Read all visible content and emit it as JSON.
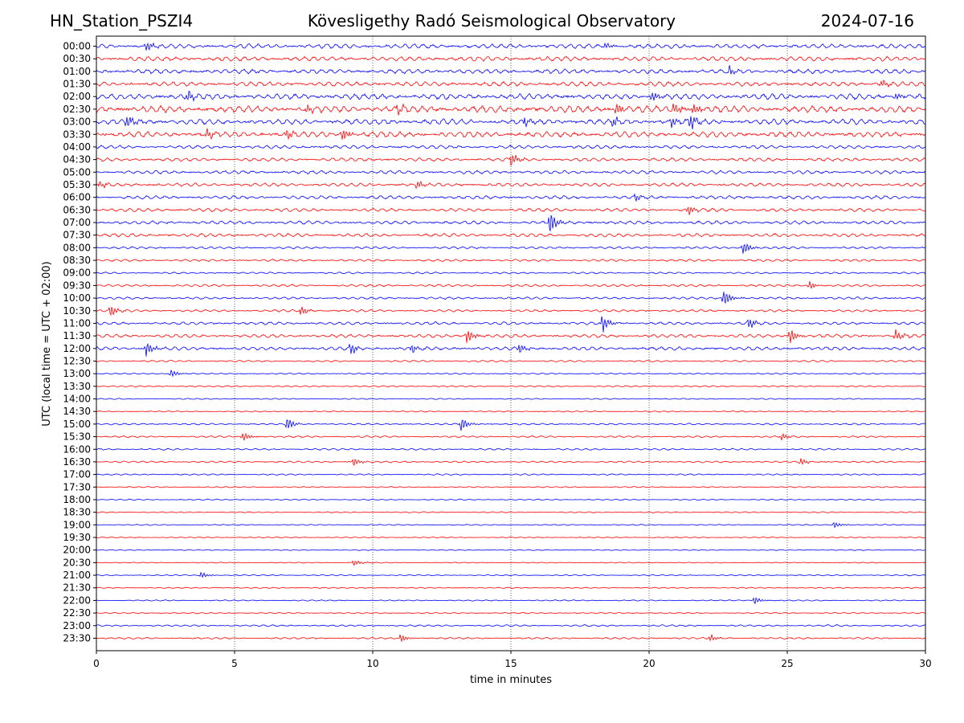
{
  "header": {
    "station": "HN_Station_PSZI4",
    "observatory": "Kövesligethy Radó Seismological Observatory",
    "date": "2024-07-16"
  },
  "chart_data": {
    "type": "line",
    "xlabel": "time in minutes",
    "ylabel": "UTC (local time = UTC + 02:00)",
    "xlim": [
      0,
      30
    ],
    "xticks": [
      0,
      5,
      10,
      15,
      20,
      25,
      30
    ],
    "grid": "vertical dotted lines at 5, 10, 15, 20, 25",
    "trace_colors": [
      "#0000ff",
      "#ff0000"
    ],
    "rows": [
      "00:00",
      "00:30",
      "01:00",
      "01:30",
      "02:00",
      "02:30",
      "03:00",
      "03:30",
      "04:00",
      "04:30",
      "05:00",
      "05:30",
      "06:00",
      "06:30",
      "07:00",
      "07:30",
      "08:00",
      "08:30",
      "09:00",
      "09:30",
      "10:00",
      "10:30",
      "11:00",
      "11:30",
      "12:00",
      "12:30",
      "13:00",
      "13:30",
      "14:00",
      "14:30",
      "15:00",
      "15:30",
      "16:00",
      "16:30",
      "17:00",
      "17:30",
      "18:00",
      "18:30",
      "19:00",
      "19:30",
      "20:00",
      "20:30",
      "21:00",
      "21:30",
      "22:00",
      "22:30",
      "23:00",
      "23:30"
    ],
    "noise_level": [
      4,
      4,
      4,
      4,
      5,
      6,
      5,
      5,
      3,
      3,
      3,
      3,
      3,
      3,
      3,
      3,
      2,
      2,
      1.5,
      2,
      2,
      2,
      2.5,
      3,
      3,
      1.5,
      1.2,
      1.2,
      1,
      1,
      1.5,
      1.5,
      1.5,
      1.5,
      1.2,
      1,
      1,
      1,
      1,
      0.8,
      0.8,
      0.8,
      1,
      1,
      1,
      1,
      1.5,
      1.5
    ],
    "events": [
      {
        "row": "00:00",
        "t": 1.8,
        "amp": 7
      },
      {
        "row": "00:00",
        "t": 18.4,
        "amp": 6
      },
      {
        "row": "01:00",
        "t": 22.9,
        "amp": 7
      },
      {
        "row": "01:30",
        "t": 28.4,
        "amp": 6
      },
      {
        "row": "02:00",
        "t": 3.3,
        "amp": 9
      },
      {
        "row": "02:00",
        "t": 20.1,
        "amp": 8
      },
      {
        "row": "02:00",
        "t": 28.9,
        "amp": 7
      },
      {
        "row": "02:30",
        "t": 7.6,
        "amp": 7
      },
      {
        "row": "02:30",
        "t": 10.9,
        "amp": 8
      },
      {
        "row": "02:30",
        "t": 18.8,
        "amp": 9
      },
      {
        "row": "02:30",
        "t": 20.9,
        "amp": 9
      },
      {
        "row": "02:30",
        "t": 21.6,
        "amp": 9
      },
      {
        "row": "03:00",
        "t": 1.1,
        "amp": 9
      },
      {
        "row": "03:00",
        "t": 15.5,
        "amp": 7
      },
      {
        "row": "03:00",
        "t": 18.7,
        "amp": 8
      },
      {
        "row": "03:00",
        "t": 20.8,
        "amp": 8
      },
      {
        "row": "03:00",
        "t": 21.5,
        "amp": 10
      },
      {
        "row": "03:30",
        "t": 4.0,
        "amp": 8
      },
      {
        "row": "03:30",
        "t": 6.9,
        "amp": 8
      },
      {
        "row": "03:30",
        "t": 8.9,
        "amp": 9
      },
      {
        "row": "04:30",
        "t": 15.0,
        "amp": 10
      },
      {
        "row": "05:30",
        "t": 0.1,
        "amp": 6
      },
      {
        "row": "05:30",
        "t": 11.6,
        "amp": 6
      },
      {
        "row": "06:00",
        "t": 19.5,
        "amp": 6
      },
      {
        "row": "06:30",
        "t": 21.4,
        "amp": 7
      },
      {
        "row": "07:00",
        "t": 16.4,
        "amp": 18
      },
      {
        "row": "08:00",
        "t": 23.4,
        "amp": 10
      },
      {
        "row": "09:30",
        "t": 25.8,
        "amp": 6
      },
      {
        "row": "10:00",
        "t": 22.7,
        "amp": 14
      },
      {
        "row": "10:30",
        "t": 0.5,
        "amp": 9
      },
      {
        "row": "10:30",
        "t": 7.4,
        "amp": 8
      },
      {
        "row": "11:00",
        "t": 18.3,
        "amp": 14
      },
      {
        "row": "11:00",
        "t": 23.6,
        "amp": 9
      },
      {
        "row": "11:30",
        "t": 13.4,
        "amp": 12
      },
      {
        "row": "11:30",
        "t": 25.1,
        "amp": 12
      },
      {
        "row": "11:30",
        "t": 28.9,
        "amp": 9
      },
      {
        "row": "12:00",
        "t": 1.8,
        "amp": 12
      },
      {
        "row": "12:00",
        "t": 9.2,
        "amp": 9
      },
      {
        "row": "12:00",
        "t": 11.4,
        "amp": 7
      },
      {
        "row": "12:00",
        "t": 15.3,
        "amp": 8
      },
      {
        "row": "13:00",
        "t": 2.7,
        "amp": 6
      },
      {
        "row": "15:00",
        "t": 6.9,
        "amp": 10
      },
      {
        "row": "15:00",
        "t": 13.2,
        "amp": 10
      },
      {
        "row": "15:30",
        "t": 5.3,
        "amp": 7
      },
      {
        "row": "15:30",
        "t": 24.8,
        "amp": 5
      },
      {
        "row": "16:30",
        "t": 9.3,
        "amp": 7
      },
      {
        "row": "16:30",
        "t": 25.5,
        "amp": 5
      },
      {
        "row": "19:00",
        "t": 26.7,
        "amp": 5
      },
      {
        "row": "20:30",
        "t": 9.3,
        "amp": 5
      },
      {
        "row": "21:00",
        "t": 3.8,
        "amp": 5
      },
      {
        "row": "22:00",
        "t": 23.8,
        "amp": 6
      },
      {
        "row": "23:30",
        "t": 11.0,
        "amp": 6
      },
      {
        "row": "23:30",
        "t": 22.2,
        "amp": 6
      }
    ]
  }
}
